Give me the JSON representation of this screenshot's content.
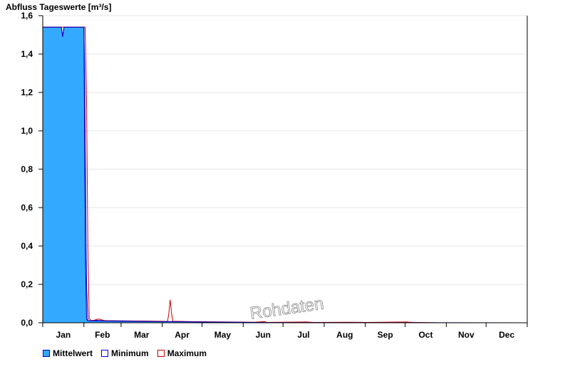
{
  "chart_data": {
    "type": "area",
    "title": "Abfluss Tageswerte [m³/s]",
    "watermark": "Rohdaten",
    "ylim": [
      0,
      1.6
    ],
    "y_ticks": [
      "0,0",
      "0,2",
      "0,4",
      "0,6",
      "0,8",
      "1,0",
      "1,2",
      "1,4",
      "1,6"
    ],
    "y_tick_values": [
      0,
      0.2,
      0.4,
      0.6,
      0.8,
      1.0,
      1.2,
      1.4,
      1.6
    ],
    "x_range_days": [
      1,
      366
    ],
    "categories": [
      "Jan",
      "Feb",
      "Mar",
      "Apr",
      "May",
      "Jun",
      "Jul",
      "Aug",
      "Sep",
      "Oct",
      "Nov",
      "Dec"
    ],
    "grid": "horizontal",
    "legend_position": "bottom-left",
    "series": [
      {
        "name": "Mittelwert",
        "color": "#33aaff",
        "edge_color": "#0000cc",
        "points": [
          [
            1,
            1.54
          ],
          [
            15,
            1.54
          ],
          [
            16,
            1.49
          ],
          [
            17,
            1.54
          ],
          [
            32,
            1.54
          ],
          [
            33,
            0.4
          ],
          [
            34,
            0.02
          ],
          [
            35,
            0.01
          ],
          [
            40,
            0.013
          ],
          [
            45,
            0.011
          ],
          [
            60,
            0.01
          ],
          [
            75,
            0.009
          ],
          [
            90,
            0.007
          ],
          [
            100,
            0.006
          ],
          [
            110,
            0.006
          ],
          [
            120,
            0.004
          ],
          [
            130,
            0.003
          ],
          [
            150,
            0.002
          ],
          [
            170,
            0.001
          ],
          [
            200,
            0.001
          ],
          [
            260,
            0.001
          ],
          [
            300,
            0.0
          ],
          [
            366,
            0.0
          ]
        ]
      },
      {
        "name": "Minimum",
        "color": "#0000cc",
        "points": [
          [
            1,
            1.54
          ],
          [
            15,
            1.54
          ],
          [
            16,
            1.49
          ],
          [
            17,
            1.54
          ],
          [
            32,
            1.54
          ],
          [
            32.5,
            1.34
          ],
          [
            33,
            0.94
          ],
          [
            33.5,
            0.56
          ],
          [
            34,
            0.2
          ],
          [
            35,
            0.01
          ],
          [
            60,
            0.008
          ],
          [
            90,
            0.006
          ],
          [
            120,
            0.004
          ],
          [
            150,
            0.003
          ],
          [
            170,
            0.001
          ],
          [
            366,
            0.0
          ]
        ]
      },
      {
        "name": "Maximum",
        "color": "#cc0000",
        "points": [
          [
            1,
            1.54
          ],
          [
            32,
            1.54
          ],
          [
            33,
            1.54
          ],
          [
            34,
            1.15
          ],
          [
            35,
            0.39
          ],
          [
            36,
            0.02
          ],
          [
            38,
            0.01
          ],
          [
            43,
            0.02
          ],
          [
            47,
            0.012
          ],
          [
            50,
            0.01
          ],
          [
            60,
            0.009
          ],
          [
            75,
            0.009
          ],
          [
            90,
            0.008
          ],
          [
            95,
            0.007
          ],
          [
            96,
            0.05
          ],
          [
            97,
            0.12
          ],
          [
            98,
            0.05
          ],
          [
            99,
            0.008
          ],
          [
            110,
            0.006
          ],
          [
            140,
            0.004
          ],
          [
            160,
            0.003
          ],
          [
            168,
            0.006
          ],
          [
            170,
            0.002
          ],
          [
            200,
            0.004
          ],
          [
            205,
            0.002
          ],
          [
            230,
            0.003
          ],
          [
            245,
            0.002
          ],
          [
            275,
            0.004
          ],
          [
            280,
            0.002
          ],
          [
            300,
            0.0
          ],
          [
            366,
            0.0
          ]
        ]
      }
    ]
  }
}
